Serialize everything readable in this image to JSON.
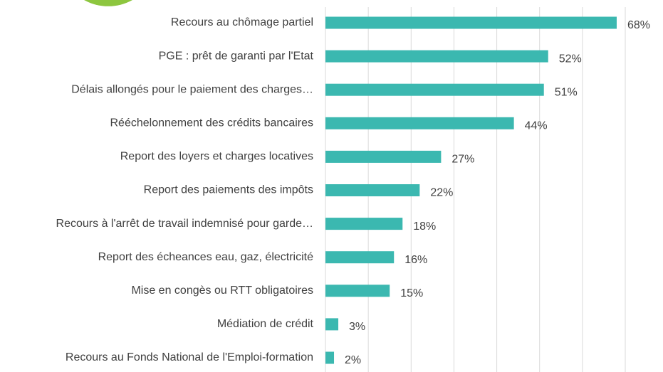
{
  "chart_data": {
    "type": "hbar",
    "categories": [
      "Recours au chômage partiel",
      "PGE : prêt de garanti par l'Etat",
      "Délais allongés pour le paiement des charges…",
      "Rééchelonnement des crédits bancaires",
      "Report des loyers et charges locatives",
      "Report des paiements des impôts",
      "Recours à l'arrêt de travail indemnisé pour garde…",
      "Report des écheances eau, gaz, électricité",
      "Mise en congès ou RTT obligatoires",
      "Médiation de crédit",
      "Recours au Fonds National de l'Emploi-formation"
    ],
    "values": [
      68,
      52,
      51,
      44,
      27,
      22,
      18,
      16,
      15,
      3,
      2
    ],
    "value_labels": [
      "68%",
      "52%",
      "51%",
      "44%",
      "27%",
      "22%",
      "18%",
      "16%",
      "15%",
      "3%",
      "2%"
    ],
    "color": "#3bb8b0",
    "xlim": [
      0,
      70
    ],
    "xticks": [
      0,
      10,
      20,
      30,
      40,
      50,
      60,
      70
    ],
    "grid": true
  }
}
